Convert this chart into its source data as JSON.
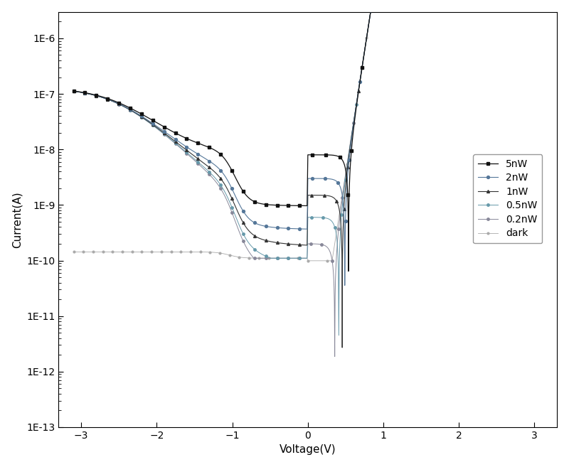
{
  "title": "",
  "xlabel": "Voltage(V)",
  "ylabel": "Current(A)",
  "xlim": [
    -3.3,
    3.3
  ],
  "ylim_log": [
    1e-13,
    3e-06
  ],
  "legend_labels": [
    "5nW",
    "2nW",
    "1nW",
    "0.5nW",
    "0.2nW",
    "dark"
  ],
  "colors": [
    "#111111",
    "#555566",
    "#333333",
    "#5588aa",
    "#778899",
    "#aaaaaa"
  ],
  "markers": [
    "s",
    "o",
    "^",
    "o",
    "o",
    "o"
  ],
  "markersizes": [
    3,
    3,
    3,
    2.5,
    2.5,
    2
  ],
  "background_color": "#ffffff",
  "figsize": [
    8.0,
    6.57
  ],
  "dpi": 100,
  "curve_params": [
    {
      "label": "5nW",
      "I_ph": 8e-09,
      "I_0": 1.5e-13,
      "n": 1.9,
      "plateau": 8e-09,
      "flat": 1.1e-10,
      "Voc": 0.55,
      "color": "#111111",
      "marker": "s",
      "ms": 3.0,
      "lw": 0.9,
      "zorder": 6,
      "ls": "-"
    },
    {
      "label": "2nW",
      "I_ph": 3e-09,
      "I_0": 1.5e-13,
      "n": 1.9,
      "plateau": 3e-09,
      "flat": 1.1e-10,
      "Voc": 0.52,
      "color": "#557799",
      "marker": "o",
      "ms": 2.8,
      "lw": 0.8,
      "zorder": 5,
      "ls": "-"
    },
    {
      "label": "1nW",
      "I_ph": 1.5e-09,
      "I_0": 1.5e-13,
      "n": 1.9,
      "plateau": 1.5e-09,
      "flat": 1.1e-10,
      "Voc": 0.5,
      "color": "#333333",
      "marker": "^",
      "ms": 2.8,
      "lw": 0.8,
      "zorder": 4,
      "ls": "-"
    },
    {
      "label": "0.5nW",
      "I_ph": 6e-10,
      "I_0": 1.5e-13,
      "n": 1.9,
      "plateau": 6e-10,
      "flat": 1.1e-10,
      "Voc": 0.47,
      "color": "#6699aa",
      "marker": "o",
      "ms": 2.5,
      "lw": 0.7,
      "zorder": 3,
      "ls": "-"
    },
    {
      "label": "0.2nW",
      "I_ph": 2e-10,
      "I_0": 1.5e-13,
      "n": 1.9,
      "plateau": 2e-10,
      "flat": 1.1e-10,
      "Voc": 0.43,
      "color": "#888899",
      "marker": "o",
      "ms": 2.5,
      "lw": 0.7,
      "zorder": 2,
      "ls": "-"
    },
    {
      "label": "dark",
      "I_ph": 0,
      "I_0": 1.5e-13,
      "n": 1.9,
      "plateau": 0,
      "flat": 1.1e-10,
      "Voc": 0.0,
      "color": "#aaaaaa",
      "marker": "o",
      "ms": 2.0,
      "lw": 0.6,
      "zorder": 1,
      "ls": "-"
    }
  ]
}
